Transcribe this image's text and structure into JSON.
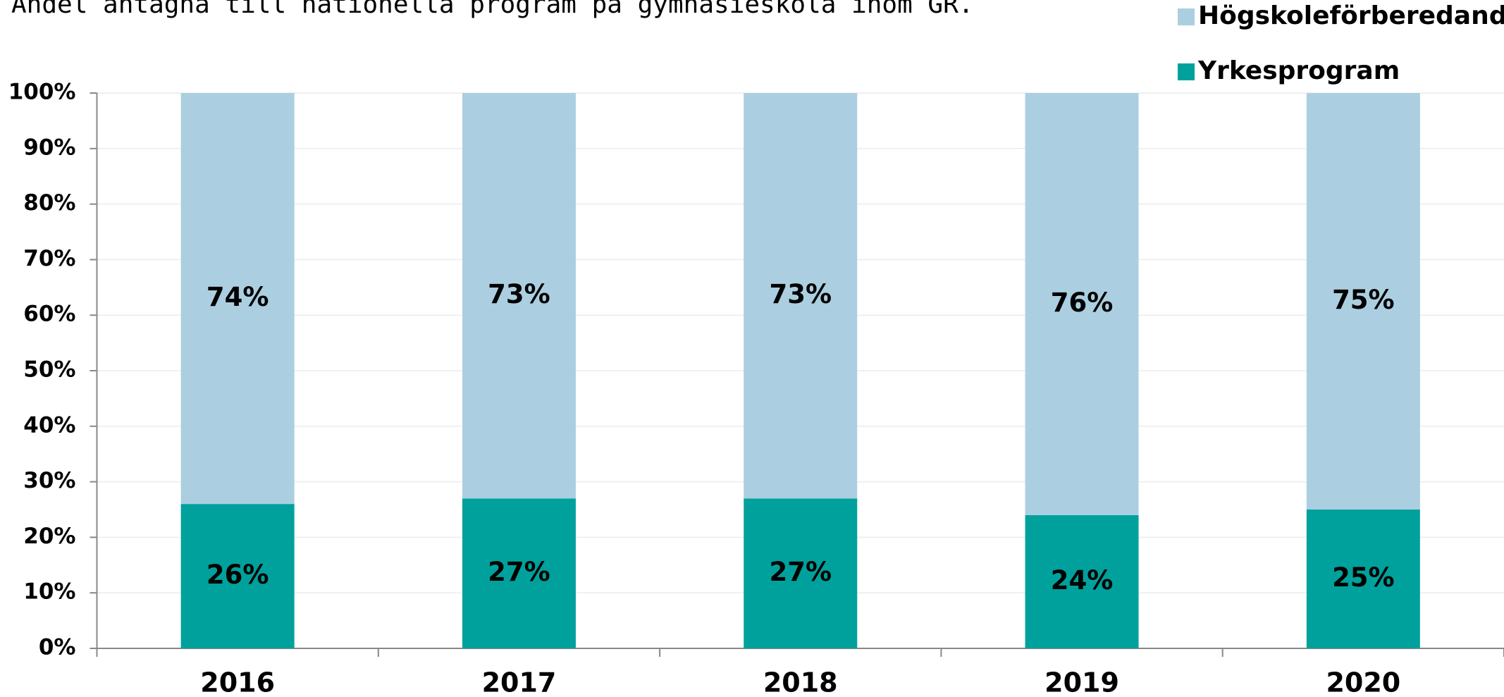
{
  "chart_data": {
    "type": "stacked_bar",
    "title": "Andel antagna till nationella program på gymnasieskola inom GR.",
    "categories": [
      "2016",
      "2017",
      "2018",
      "2019",
      "2020"
    ],
    "series": [
      {
        "name": "Yrkesprogram",
        "color": "#00a19c",
        "values": [
          26,
          27,
          27,
          24,
          25
        ],
        "value_labels": [
          "26%",
          "27%",
          "27%",
          "24%",
          "25%"
        ]
      },
      {
        "name": "Högskoleförberedande",
        "color": "#abcfe0",
        "values": [
          74,
          73,
          73,
          76,
          75
        ],
        "value_labels": [
          "74%",
          "73%",
          "73%",
          "76%",
          "75%"
        ]
      }
    ],
    "ylim": [
      0,
      100
    ],
    "yticks": [
      {
        "value": 0,
        "label": "0%"
      },
      {
        "value": 10,
        "label": "10%"
      },
      {
        "value": 20,
        "label": "20%"
      },
      {
        "value": 30,
        "label": "30%"
      },
      {
        "value": 40,
        "label": "40%"
      },
      {
        "value": 50,
        "label": "50%"
      },
      {
        "value": 60,
        "label": "60%"
      },
      {
        "value": 70,
        "label": "70%"
      },
      {
        "value": 80,
        "label": "80%"
      },
      {
        "value": 90,
        "label": "90%"
      },
      {
        "value": 100,
        "label": "100%"
      }
    ],
    "grid": true,
    "legend": "top-right"
  }
}
